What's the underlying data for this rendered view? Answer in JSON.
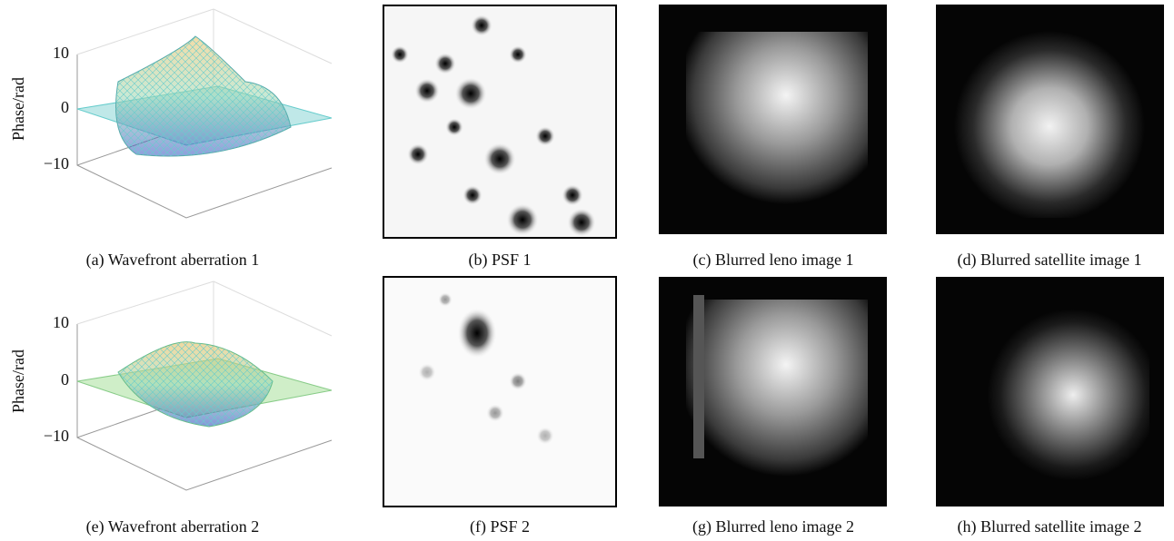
{
  "panels": [
    {
      "caption": "(a) Wavefront aberration 1",
      "zlabel": "Phase/rad",
      "zticks": [
        "10",
        "0",
        "−10"
      ]
    },
    {
      "caption": "(b) PSF 1"
    },
    {
      "caption": "(c) Blurred leno image 1"
    },
    {
      "caption": "(d) Blurred satellite image 1"
    },
    {
      "caption": "(e) Wavefront aberration 2",
      "zlabel": "Phase/rad",
      "zticks": [
        "10",
        "0",
        "−10"
      ]
    },
    {
      "caption": "(f) PSF 2"
    },
    {
      "caption": "(g) Blurred leno image 2"
    },
    {
      "caption": "(h) Blurred satellite image 2"
    }
  ]
}
